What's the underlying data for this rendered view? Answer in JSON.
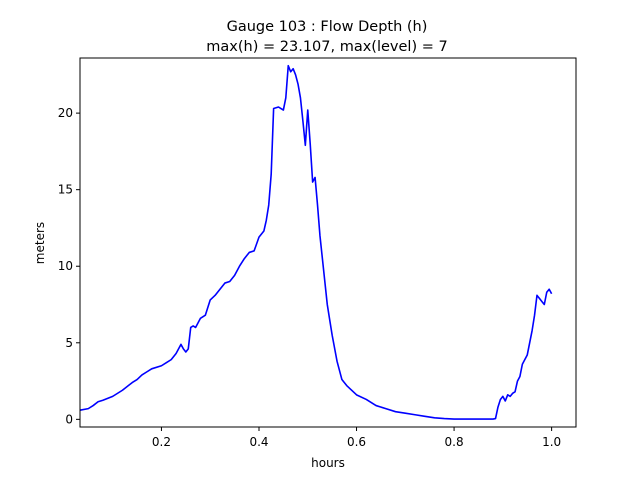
{
  "chart_data": {
    "type": "line",
    "title": "Gauge 103 : Flow Depth (h)",
    "subtitle": "max(h) =  23.107,    max(level) = 7",
    "xlabel": "hours",
    "ylabel": "meters",
    "xlim": [
      0.033,
      1.05
    ],
    "ylim": [
      -0.5,
      23.6
    ],
    "xticks": [
      0.2,
      0.4,
      0.6,
      0.8,
      1.0
    ],
    "xtick_labels": [
      "0.2",
      "0.4",
      "0.6",
      "0.8",
      "1.0"
    ],
    "yticks": [
      0,
      5,
      10,
      15,
      20
    ],
    "ytick_labels": [
      "0",
      "5",
      "10",
      "15",
      "20"
    ],
    "grid": false,
    "series": [
      {
        "color": "#0000ff",
        "x": [
          0.033,
          0.05,
          0.06,
          0.07,
          0.08,
          0.1,
          0.12,
          0.14,
          0.15,
          0.16,
          0.17,
          0.18,
          0.2,
          0.21,
          0.22,
          0.23,
          0.24,
          0.245,
          0.25,
          0.255,
          0.26,
          0.265,
          0.27,
          0.28,
          0.29,
          0.3,
          0.31,
          0.32,
          0.33,
          0.34,
          0.35,
          0.36,
          0.37,
          0.38,
          0.39,
          0.4,
          0.41,
          0.415,
          0.42,
          0.425,
          0.43,
          0.44,
          0.445,
          0.45,
          0.455,
          0.46,
          0.465,
          0.47,
          0.475,
          0.48,
          0.485,
          0.49,
          0.495,
          0.5,
          0.505,
          0.51,
          0.515,
          0.52,
          0.525,
          0.53,
          0.535,
          0.54,
          0.545,
          0.55,
          0.56,
          0.57,
          0.58,
          0.6,
          0.62,
          0.64,
          0.66,
          0.68,
          0.7,
          0.72,
          0.74,
          0.76,
          0.78,
          0.8,
          0.82,
          0.84,
          0.86,
          0.88,
          0.885,
          0.89,
          0.895,
          0.9,
          0.905,
          0.91,
          0.915,
          0.92,
          0.925,
          0.93,
          0.935,
          0.94,
          0.945,
          0.95,
          0.955,
          0.96,
          0.965,
          0.97,
          0.975,
          0.98,
          0.985,
          0.99,
          0.995,
          1.0
        ],
        "y": [
          0.6,
          0.7,
          0.9,
          1.15,
          1.25,
          1.5,
          1.9,
          2.4,
          2.6,
          2.9,
          3.1,
          3.3,
          3.5,
          3.7,
          3.9,
          4.3,
          4.9,
          4.6,
          4.4,
          4.6,
          6.0,
          6.1,
          6.0,
          6.6,
          6.8,
          7.8,
          8.1,
          8.5,
          8.9,
          9.0,
          9.4,
          10.0,
          10.5,
          10.9,
          11.0,
          11.9,
          12.3,
          13.0,
          14.0,
          16.0,
          20.3,
          20.4,
          20.3,
          20.2,
          21.0,
          23.1,
          22.7,
          22.9,
          22.5,
          21.9,
          21.0,
          19.5,
          17.9,
          20.2,
          18.0,
          15.5,
          15.8,
          14.0,
          12.0,
          10.5,
          9.0,
          7.5,
          6.5,
          5.5,
          3.8,
          2.6,
          2.2,
          1.6,
          1.3,
          0.9,
          0.7,
          0.5,
          0.4,
          0.3,
          0.2,
          0.1,
          0.05,
          0.02,
          0.02,
          0.02,
          0.02,
          0.02,
          0.05,
          0.8,
          1.3,
          1.5,
          1.2,
          1.6,
          1.5,
          1.7,
          1.8,
          2.5,
          2.8,
          3.6,
          3.9,
          4.2,
          5.0,
          5.8,
          6.8,
          8.1,
          7.9,
          7.7,
          7.5,
          8.3,
          8.5,
          8.2
        ]
      }
    ]
  }
}
